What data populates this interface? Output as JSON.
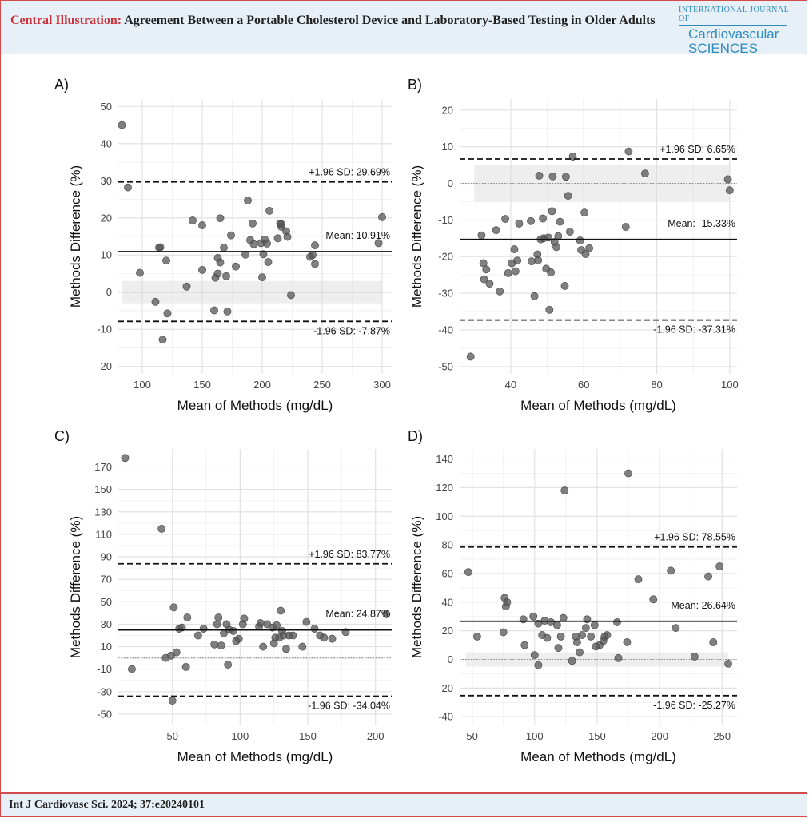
{
  "header": {
    "lead": "Central Illustration:",
    "title": " Agreement Between a Portable Cholesterol Device and Laboratory-Based Testing in Older Adults",
    "journal_small": "INTERNATIONAL JOURNAL OF",
    "journal_line1": "Cardiovascular",
    "journal_line2": "SCIENCES"
  },
  "footer": {
    "citation": "Int J Cardiovasc Sci. 2024; 37:e20240101"
  },
  "chart_data": [
    {
      "panel": "A)",
      "type": "scatter",
      "xlabel": "Mean of Methods (mg/dL)",
      "ylabel": "Methods Difference (%)",
      "xlim": [
        80,
        308
      ],
      "ylim": [
        -22,
        52
      ],
      "xticks": [
        100,
        150,
        200,
        250,
        300
      ],
      "yticks": [
        -20,
        -10,
        0,
        10,
        20,
        30,
        40,
        50
      ],
      "mean": 10.91,
      "upper": 29.69,
      "lower": -7.87,
      "mean_label": "Mean: 10.91%",
      "upper_label": "+1.96 SD: 29.69%",
      "lower_label": "-1.96 SD: -7.87%",
      "band": [
        83,
        300,
        -3,
        3
      ],
      "points": [
        [
          83,
          45
        ],
        [
          88,
          28.2
        ],
        [
          98,
          5.2
        ],
        [
          111,
          -2.6
        ],
        [
          114,
          12
        ],
        [
          115,
          12.1
        ],
        [
          117,
          -12.8
        ],
        [
          120,
          8.5
        ],
        [
          121,
          -5.7
        ],
        [
          142,
          19.3
        ],
        [
          150,
          18
        ],
        [
          150,
          6
        ],
        [
          137,
          1.5
        ],
        [
          160,
          -4.9
        ],
        [
          161,
          3.9
        ],
        [
          163,
          5
        ],
        [
          163,
          9.2
        ],
        [
          165,
          19.9
        ],
        [
          165,
          8
        ],
        [
          168,
          12
        ],
        [
          170,
          4.3
        ],
        [
          171,
          -5.2
        ],
        [
          174,
          15.3
        ],
        [
          178,
          6.9
        ],
        [
          186,
          10.1
        ],
        [
          188,
          24.7
        ],
        [
          190,
          14
        ],
        [
          192,
          18.5
        ],
        [
          193,
          12.9
        ],
        [
          199,
          13.2
        ],
        [
          200,
          4
        ],
        [
          201,
          10.2
        ],
        [
          202,
          14.2
        ],
        [
          204,
          13.1
        ],
        [
          205,
          8.1
        ],
        [
          206,
          21.9
        ],
        [
          213,
          14.5
        ],
        [
          215,
          18.5
        ],
        [
          216,
          17.6
        ],
        [
          216,
          18.3
        ],
        [
          220,
          16.4
        ],
        [
          221,
          14.9
        ],
        [
          224,
          -0.8
        ],
        [
          240,
          9.5
        ],
        [
          242,
          10
        ],
        [
          244,
          12.6
        ],
        [
          244,
          7.6
        ],
        [
          297,
          13.2
        ],
        [
          300,
          20.2
        ]
      ]
    },
    {
      "panel": "B)",
      "type": "scatter",
      "xlabel": "Mean of Methods (mg/dL)",
      "ylabel": "Methods Difference (%)",
      "xlim": [
        26,
        102
      ],
      "ylim": [
        -52,
        23
      ],
      "xticks": [
        40,
        60,
        80,
        100
      ],
      "yticks": [
        -50,
        -40,
        -30,
        -20,
        -10,
        0,
        10,
        20
      ],
      "mean": -15.33,
      "upper": 6.65,
      "lower": -37.31,
      "mean_label": "Mean: -15.33%",
      "upper_label": "+1.96 SD: 6.65%",
      "lower_label": "-1.96 SD: -37.31%",
      "band": [
        30,
        100,
        -5,
        5
      ],
      "points": [
        [
          29,
          -47.3
        ],
        [
          32,
          -14.2
        ],
        [
          32.5,
          -21.8
        ],
        [
          32.7,
          -26.2
        ],
        [
          33.3,
          -23.5
        ],
        [
          34.2,
          -27.4
        ],
        [
          36,
          -12.8
        ],
        [
          37,
          -29.5
        ],
        [
          38.5,
          -9.7
        ],
        [
          39.3,
          -24.5
        ],
        [
          40.3,
          -21.8
        ],
        [
          41,
          -18
        ],
        [
          41.3,
          -24
        ],
        [
          41.8,
          -21.1
        ],
        [
          42.3,
          -11
        ],
        [
          45.5,
          -10.3
        ],
        [
          45.7,
          -21.3
        ],
        [
          46.5,
          -30.8
        ],
        [
          47.3,
          -19.4
        ],
        [
          47.8,
          2.1
        ],
        [
          47.5,
          -21
        ],
        [
          48.2,
          -15.3
        ],
        [
          48.8,
          -9.6
        ],
        [
          49,
          -15
        ],
        [
          49.7,
          -23.3
        ],
        [
          50.3,
          -14.8
        ],
        [
          50.6,
          -34.5
        ],
        [
          51,
          -24.3
        ],
        [
          51.3,
          -7.6
        ],
        [
          51.5,
          1.9
        ],
        [
          52,
          -16
        ],
        [
          52.5,
          -17.4
        ],
        [
          53,
          -14.4
        ],
        [
          53.5,
          -10.5
        ],
        [
          54.8,
          -28
        ],
        [
          55.1,
          1.8
        ],
        [
          55.7,
          -3.4
        ],
        [
          56.2,
          -13.2
        ],
        [
          57,
          7.3
        ],
        [
          59,
          -15.6
        ],
        [
          59.3,
          -18.2
        ],
        [
          60.5,
          -19.3
        ],
        [
          60.2,
          -8
        ],
        [
          61.5,
          -17.7
        ],
        [
          71.5,
          -11.9
        ],
        [
          72.3,
          8.7
        ],
        [
          76.8,
          2.7
        ],
        [
          99.5,
          1.1
        ],
        [
          100,
          -1.9
        ]
      ]
    },
    {
      "panel": "C)",
      "type": "scatter",
      "xlabel": "Mean of Methods (mg/dL)",
      "ylabel": "Methods Difference (%)",
      "xlim": [
        10,
        212
      ],
      "ylim": [
        -60,
        186
      ],
      "xticks": [
        50,
        100,
        150,
        200
      ],
      "yticks": [
        -50,
        -30,
        -10,
        10,
        30,
        50,
        70,
        90,
        110,
        130,
        150,
        170
      ],
      "mean": 24.87,
      "upper": 83.77,
      "lower": -34.04,
      "mean_label": "Mean: 24.87%",
      "upper_label": "+1.96 SD: 83.77%",
      "lower_label": "-1.96 SD: -34.04%",
      "band": [
        13,
        206,
        -1,
        1
      ],
      "points": [
        [
          15,
          178
        ],
        [
          20,
          -10
        ],
        [
          42,
          115
        ],
        [
          45,
          0
        ],
        [
          49,
          2
        ],
        [
          50,
          -38
        ],
        [
          51,
          45
        ],
        [
          53,
          5
        ],
        [
          55,
          26
        ],
        [
          57,
          27
        ],
        [
          60,
          -8
        ],
        [
          61,
          36
        ],
        [
          69,
          20
        ],
        [
          73,
          26
        ],
        [
          81,
          12
        ],
        [
          83,
          30
        ],
        [
          84,
          36
        ],
        [
          86,
          11
        ],
        [
          88,
          22
        ],
        [
          90,
          30
        ],
        [
          91,
          -6
        ],
        [
          92,
          25
        ],
        [
          95,
          24
        ],
        [
          97,
          15
        ],
        [
          99,
          17
        ],
        [
          102,
          30
        ],
        [
          103,
          35
        ],
        [
          114,
          28
        ],
        [
          115,
          31
        ],
        [
          117,
          10
        ],
        [
          120,
          30
        ],
        [
          124,
          27
        ],
        [
          125,
          13
        ],
        [
          126,
          18
        ],
        [
          127,
          29
        ],
        [
          129,
          18
        ],
        [
          130,
          42
        ],
        [
          131,
          24
        ],
        [
          132,
          20
        ],
        [
          134,
          8
        ],
        [
          136,
          20
        ],
        [
          139,
          20
        ],
        [
          146,
          10
        ],
        [
          149,
          32
        ],
        [
          155,
          26
        ],
        [
          159,
          20
        ],
        [
          162,
          18
        ],
        [
          168,
          17
        ],
        [
          178,
          23
        ],
        [
          208,
          39
        ]
      ]
    },
    {
      "panel": "D)",
      "type": "scatter",
      "xlabel": "Mean of Methods (mg/dL)",
      "ylabel": "Methods Difference (%)",
      "xlim": [
        40,
        262
      ],
      "ylim": [
        -46,
        147
      ],
      "xticks": [
        50,
        100,
        150,
        200,
        250
      ],
      "yticks": [
        -40,
        -20,
        0,
        20,
        40,
        60,
        80,
        100,
        120,
        140
      ],
      "mean": 26.64,
      "upper": 78.55,
      "lower": -25.27,
      "mean_label": "Mean: 26.64%",
      "upper_label": "+1.96 SD: 78.55%",
      "lower_label": "-1.96 SD: -25.27%",
      "band": [
        45,
        255,
        -5,
        5
      ],
      "points": [
        [
          47,
          61
        ],
        [
          54,
          16
        ],
        [
          75,
          19
        ],
        [
          76,
          43
        ],
        [
          77,
          37
        ],
        [
          78,
          40
        ],
        [
          91,
          28
        ],
        [
          92,
          10
        ],
        [
          99,
          30
        ],
        [
          100,
          3
        ],
        [
          103,
          25
        ],
        [
          103,
          -4
        ],
        [
          106,
          17
        ],
        [
          108,
          27
        ],
        [
          110,
          15
        ],
        [
          113,
          26
        ],
        [
          118,
          24
        ],
        [
          119,
          8
        ],
        [
          121,
          16
        ],
        [
          123,
          29
        ],
        [
          124,
          118
        ],
        [
          130,
          -1
        ],
        [
          133,
          16
        ],
        [
          134,
          12
        ],
        [
          136,
          5
        ],
        [
          138,
          17
        ],
        [
          141,
          22
        ],
        [
          142,
          28
        ],
        [
          145,
          16
        ],
        [
          148,
          24
        ],
        [
          149,
          9
        ],
        [
          152,
          10
        ],
        [
          155,
          13
        ],
        [
          156,
          16
        ],
        [
          158,
          17
        ],
        [
          166,
          26
        ],
        [
          167,
          1
        ],
        [
          174,
          12
        ],
        [
          175,
          130
        ],
        [
          183,
          56
        ],
        [
          195,
          42
        ],
        [
          209,
          62
        ],
        [
          213,
          22
        ],
        [
          228,
          2
        ],
        [
          239,
          58
        ],
        [
          243,
          12
        ],
        [
          248,
          65
        ],
        [
          255,
          -3
        ]
      ]
    }
  ]
}
